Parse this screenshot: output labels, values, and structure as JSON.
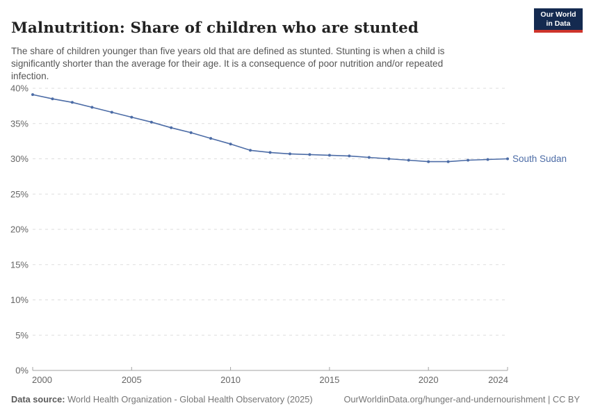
{
  "header": {
    "title": "Malnutrition: Share of children who are stunted",
    "subtitle": "The share of children younger than five years old that are defined as stunted. Stunting is when a child is significantly shorter than the average for their age. It is a consequence of poor nutrition and/or repeated infection.",
    "logo": {
      "line1": "Our World",
      "line2": "in Data",
      "bg_color": "#142A50",
      "bar_color": "#CE342B"
    }
  },
  "chart_data": {
    "type": "line",
    "title": "Malnutrition: Share of children who are stunted",
    "x": [
      2000,
      2001,
      2002,
      2003,
      2004,
      2005,
      2006,
      2007,
      2008,
      2009,
      2010,
      2011,
      2012,
      2013,
      2014,
      2015,
      2016,
      2017,
      2018,
      2019,
      2020,
      2021,
      2022,
      2023,
      2024
    ],
    "series": [
      {
        "name": "South Sudan",
        "color": "#4C6CA6",
        "values": [
          39.1,
          38.5,
          38.0,
          37.3,
          36.6,
          35.9,
          35.2,
          34.4,
          33.7,
          32.9,
          32.1,
          31.2,
          30.9,
          30.7,
          30.6,
          30.5,
          30.4,
          30.2,
          30.0,
          29.8,
          29.6,
          29.6,
          29.8,
          29.9,
          30.0
        ]
      }
    ],
    "xlabel": "",
    "ylabel": "",
    "ylim": [
      0,
      40
    ],
    "yticks": [
      0,
      5,
      10,
      15,
      20,
      25,
      30,
      35,
      40
    ],
    "ytick_suffix": "%",
    "xticks": [
      2000,
      2005,
      2010,
      2015,
      2020,
      2024
    ],
    "grid": "horizontal-dashed",
    "legend_position": "end-of-line-label",
    "grid_color": "#dddddd",
    "axis_color": "#a3a3a3",
    "tick_label_color": "#666666"
  },
  "footer": {
    "datasource_label": "Data source:",
    "datasource_value": " World Health Organization - Global Health Observatory (2025)",
    "link": "OurWorldinData.org/hunger-and-undernourishment",
    "separator": " | ",
    "license": "CC BY"
  }
}
